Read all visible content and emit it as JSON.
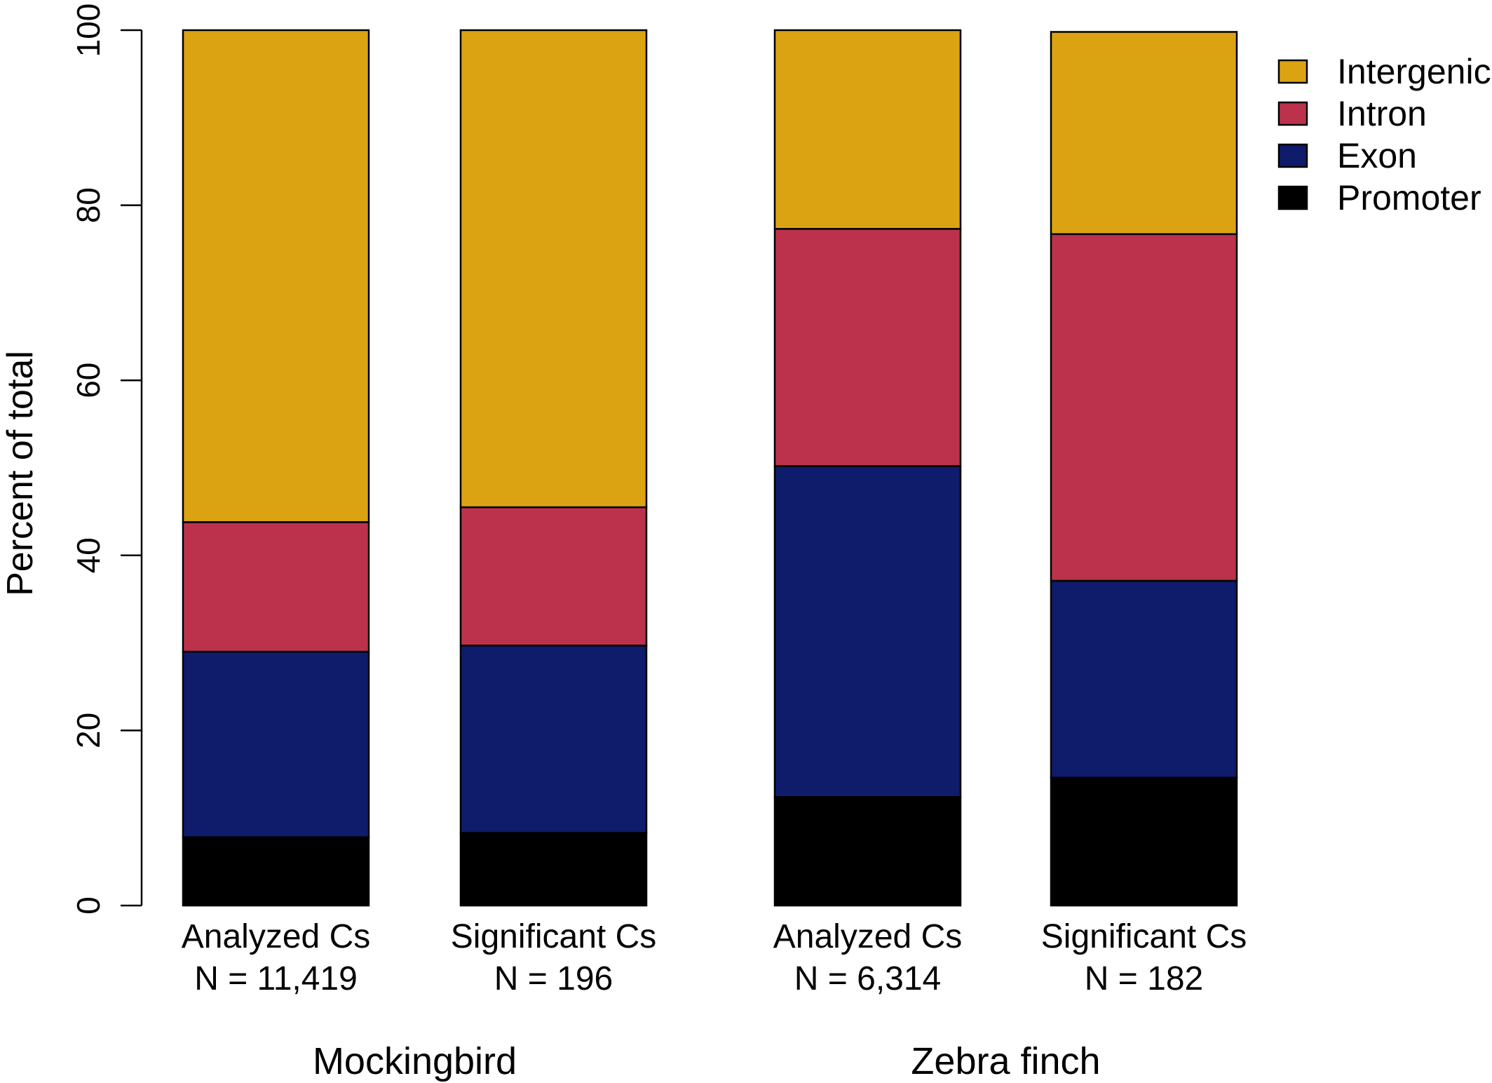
{
  "chart_data": {
    "type": "bar",
    "stacked": true,
    "ylabel": "Percent of total",
    "ylim": [
      0,
      100
    ],
    "yticks": [
      "0",
      "20",
      "40",
      "60",
      "80",
      "100"
    ],
    "grid": false,
    "legend_position": "top-right",
    "bars": [
      {
        "label": "Analyzed Cs",
        "n_label": "N = 11,419",
        "group": "Mockingbird"
      },
      {
        "label": "Significant Cs",
        "n_label": "N = 196",
        "group": "Mockingbird"
      },
      {
        "label": "Analyzed Cs",
        "n_label": "N = 6,314",
        "group": "Zebra finch"
      },
      {
        "label": "Significant Cs",
        "n_label": "N = 182",
        "group": "Zebra finch"
      }
    ],
    "groups": [
      "Mockingbird",
      "Zebra finch"
    ],
    "series": [
      {
        "name": "Promoter",
        "color": "#000000",
        "values": [
          7.8,
          8.3,
          12.4,
          14.6
        ]
      },
      {
        "name": "Exon",
        "color": "#0f1b6b",
        "values": [
          21.2,
          21.4,
          37.8,
          22.5
        ]
      },
      {
        "name": "Intron",
        "color": "#bc324c",
        "values": [
          14.8,
          15.8,
          27.1,
          39.6
        ]
      },
      {
        "name": "Intergenic",
        "color": "#dba212",
        "values": [
          56.2,
          54.5,
          22.7,
          23.1
        ]
      }
    ],
    "legend_order": [
      "Intergenic",
      "Intron",
      "Exon",
      "Promoter"
    ]
  }
}
